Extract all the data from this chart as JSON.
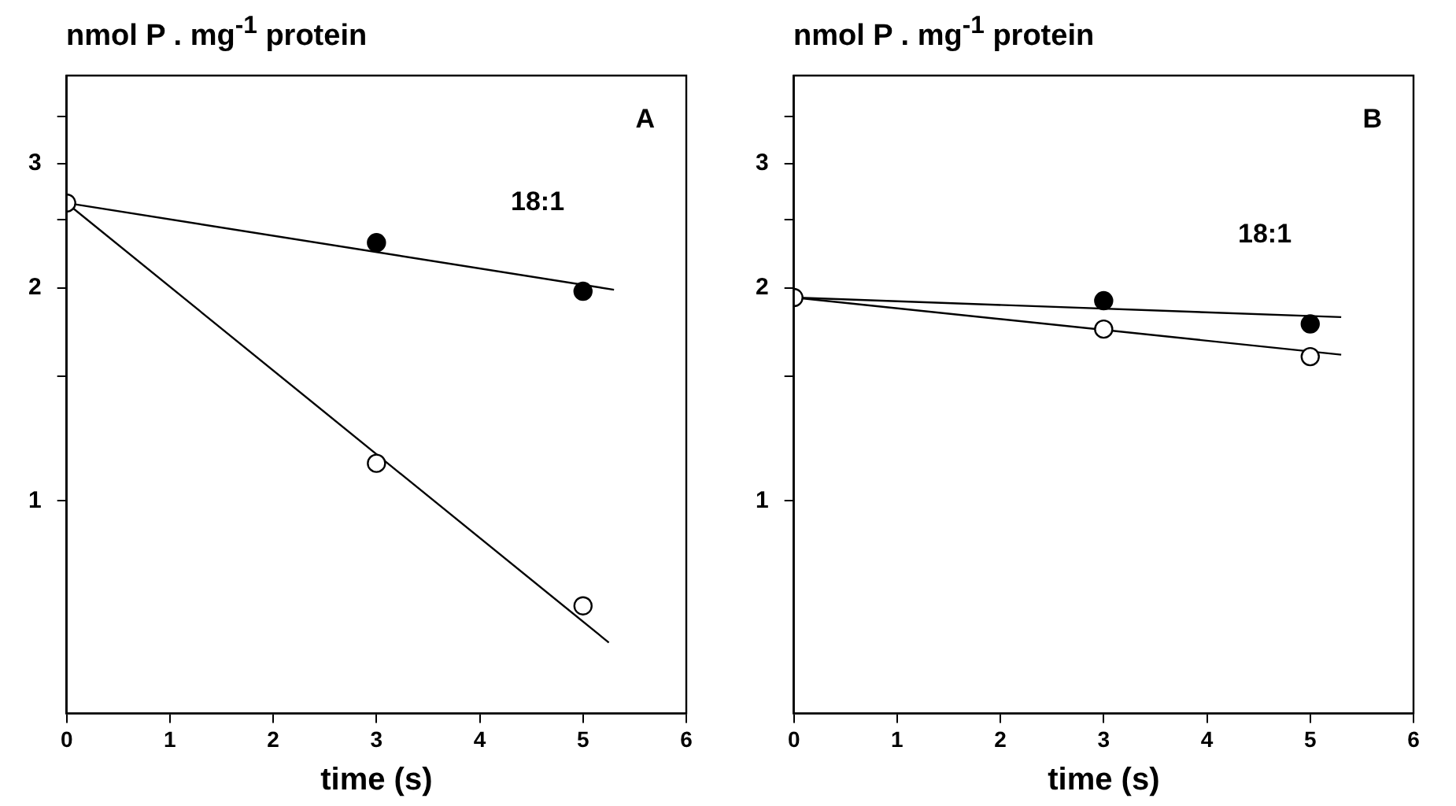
{
  "chart_data": [
    {
      "type": "scatter",
      "ylabel": "nmol P . mg$^{-1}$ protein",
      "xlabel": "time (s)",
      "log": "y",
      "xlim": [
        0,
        6
      ],
      "xticks": [
        0,
        1,
        2,
        3,
        4,
        5,
        6
      ],
      "ylim": [
        0.5,
        4
      ],
      "yticks": [
        1,
        {
          "value": 1.5,
          "label": null
        },
        2,
        {
          "value": 2.5,
          "label": null
        },
        3,
        {
          "value": 3.5,
          "label": null
        }
      ],
      "grid": false,
      "legend": false,
      "marker": "circle",
      "annotations": [
        "A",
        "18:1"
      ],
      "series": [
        {
          "type": "line",
          "color": "#000000",
          "x": [
            0,
            5.3
          ],
          "values": [
            2.64,
            1.99
          ],
          "marker": "none"
        },
        {
          "type": "line",
          "color": "#000000",
          "x": [
            0,
            5.25
          ],
          "values": [
            2.64,
            0.63
          ],
          "marker": "none"
        },
        {
          "color": "#000000",
          "x": [
            3,
            5
          ],
          "values": [
            2.32,
            1.98
          ]
        },
        {
          "color": "#ffffff",
          "x": [
            0,
            3,
            5
          ],
          "values": [
            2.64,
            1.13,
            0.71
          ]
        }
      ]
    },
    {
      "type": "scatter",
      "ylabel": "nmol P . mg$^{-1}$ protein",
      "xlabel": "time (s)",
      "log": "y",
      "xlim": [
        0,
        6
      ],
      "xticks": [
        0,
        1,
        2,
        3,
        4,
        5,
        6
      ],
      "ylim": [
        0.5,
        4
      ],
      "yticks": [
        1,
        {
          "value": 1.5,
          "label": null
        },
        2,
        {
          "value": 2.5,
          "label": null
        },
        3,
        {
          "value": 3.5,
          "label": null
        }
      ],
      "grid": false,
      "legend": false,
      "marker": "circle",
      "annotations": [
        "B",
        "18:1"
      ],
      "series": [
        {
          "type": "line",
          "color": "#000000",
          "x": [
            0,
            5.3
          ],
          "values": [
            1.94,
            1.82
          ],
          "marker": "none"
        },
        {
          "type": "line",
          "color": "#000000",
          "x": [
            0,
            5.3
          ],
          "values": [
            1.94,
            1.61
          ],
          "marker": "none"
        },
        {
          "color": "#000000",
          "x": [
            3,
            5
          ],
          "values": [
            1.92,
            1.78
          ]
        },
        {
          "color": "#ffffff",
          "x": [
            0,
            3,
            5
          ],
          "values": [
            1.94,
            1.75,
            1.6
          ]
        }
      ]
    }
  ]
}
